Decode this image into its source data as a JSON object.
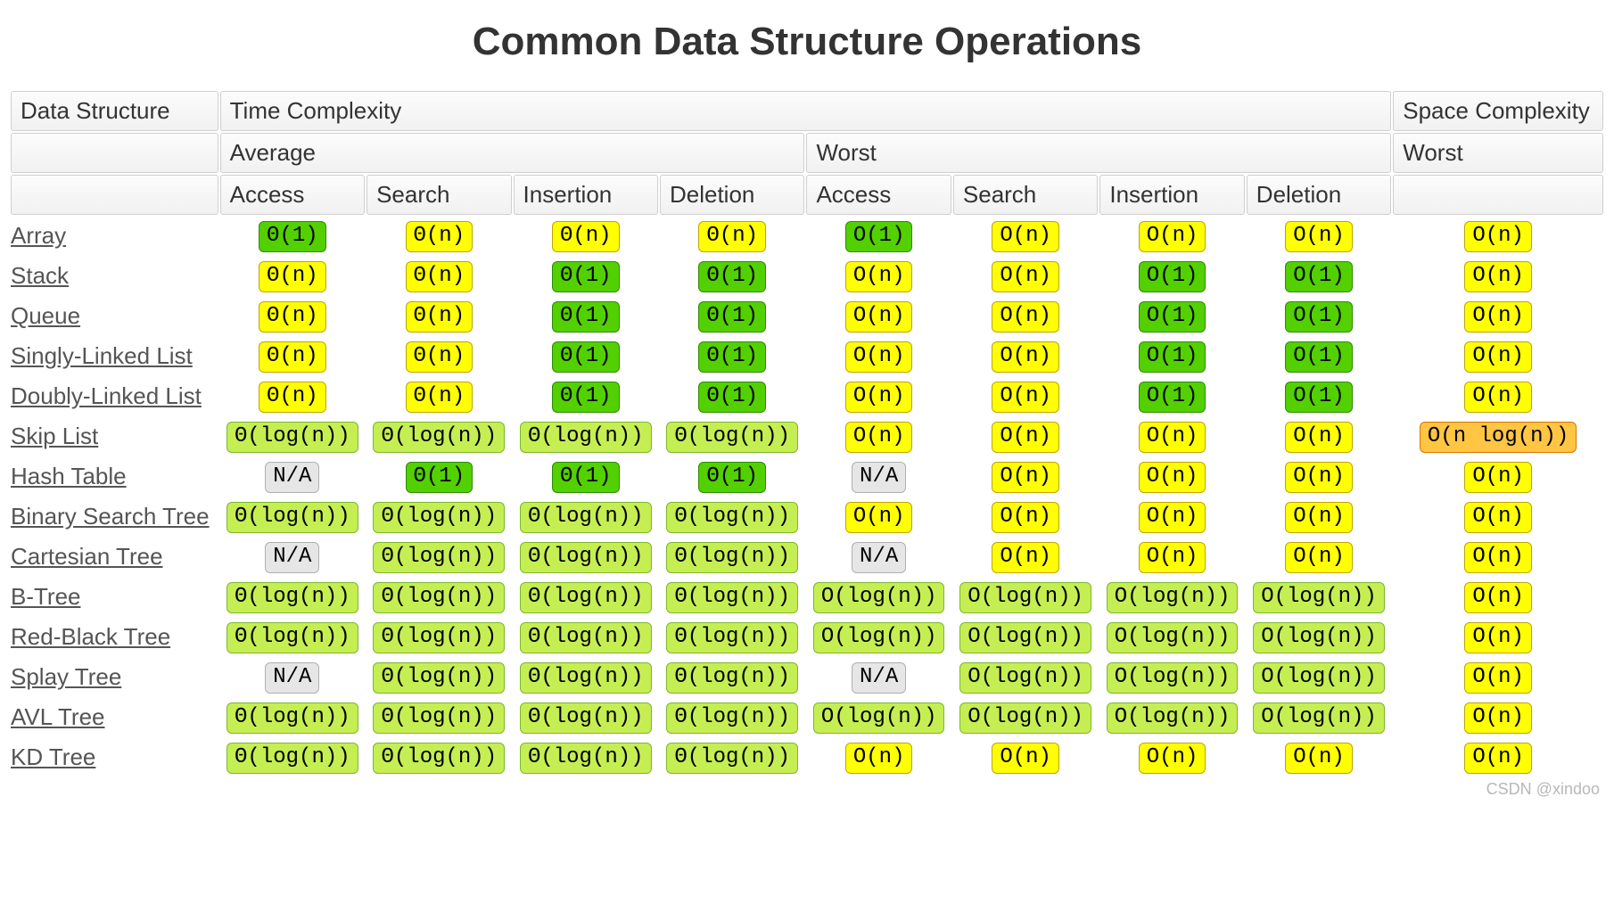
{
  "title": "Common Data Structure Operations",
  "watermark": "CSDN @xindoo",
  "colors": {
    "green": "#53d000",
    "lime": "#c5ee53",
    "yellow": "#ffff00",
    "orange": "#ffc543",
    "red": "#ff8989",
    "na": "#e6e6e6",
    "header_bg_top": "#fcfcfc",
    "header_bg_bot": "#f1f1f1",
    "header_border": "#cfcfcf",
    "text": "#333333",
    "link": "#555555",
    "background": "#ffffff"
  },
  "typography": {
    "title_fontsize": 44,
    "header_fontsize": 26,
    "cell_fontsize": 26,
    "chip_fontsize": 24,
    "chip_fontfamily": "Courier New",
    "body_fontfamily": "Helvetica Neue"
  },
  "header_rows": [
    [
      {
        "label": "Data Structure",
        "colspan": 1
      },
      {
        "label": "Time Complexity",
        "colspan": 8
      },
      {
        "label": "Space Complexity",
        "colspan": 1
      }
    ],
    [
      {
        "label": "",
        "colspan": 1
      },
      {
        "label": "Average",
        "colspan": 4
      },
      {
        "label": "Worst",
        "colspan": 4
      },
      {
        "label": "Worst",
        "colspan": 1
      }
    ],
    [
      {
        "label": "",
        "colspan": 1
      },
      {
        "label": "Access",
        "colspan": 1
      },
      {
        "label": "Search",
        "colspan": 1
      },
      {
        "label": "Insertion",
        "colspan": 1
      },
      {
        "label": "Deletion",
        "colspan": 1
      },
      {
        "label": "Access",
        "colspan": 1
      },
      {
        "label": "Search",
        "colspan": 1
      },
      {
        "label": "Insertion",
        "colspan": 1
      },
      {
        "label": "Deletion",
        "colspan": 1
      },
      {
        "label": "",
        "colspan": 1
      }
    ]
  ],
  "rows": [
    {
      "name": "Array",
      "cells": [
        {
          "text": "Θ(1)",
          "class": "green"
        },
        {
          "text": "Θ(n)",
          "class": "yellow"
        },
        {
          "text": "Θ(n)",
          "class": "yellow"
        },
        {
          "text": "Θ(n)",
          "class": "yellow"
        },
        {
          "text": "O(1)",
          "class": "green"
        },
        {
          "text": "O(n)",
          "class": "yellow"
        },
        {
          "text": "O(n)",
          "class": "yellow"
        },
        {
          "text": "O(n)",
          "class": "yellow"
        },
        {
          "text": "O(n)",
          "class": "yellow"
        }
      ]
    },
    {
      "name": "Stack",
      "cells": [
        {
          "text": "Θ(n)",
          "class": "yellow"
        },
        {
          "text": "Θ(n)",
          "class": "yellow"
        },
        {
          "text": "Θ(1)",
          "class": "green"
        },
        {
          "text": "Θ(1)",
          "class": "green"
        },
        {
          "text": "O(n)",
          "class": "yellow"
        },
        {
          "text": "O(n)",
          "class": "yellow"
        },
        {
          "text": "O(1)",
          "class": "green"
        },
        {
          "text": "O(1)",
          "class": "green"
        },
        {
          "text": "O(n)",
          "class": "yellow"
        }
      ]
    },
    {
      "name": "Queue",
      "cells": [
        {
          "text": "Θ(n)",
          "class": "yellow"
        },
        {
          "text": "Θ(n)",
          "class": "yellow"
        },
        {
          "text": "Θ(1)",
          "class": "green"
        },
        {
          "text": "Θ(1)",
          "class": "green"
        },
        {
          "text": "O(n)",
          "class": "yellow"
        },
        {
          "text": "O(n)",
          "class": "yellow"
        },
        {
          "text": "O(1)",
          "class": "green"
        },
        {
          "text": "O(1)",
          "class": "green"
        },
        {
          "text": "O(n)",
          "class": "yellow"
        }
      ]
    },
    {
      "name": "Singly-Linked List",
      "cells": [
        {
          "text": "Θ(n)",
          "class": "yellow"
        },
        {
          "text": "Θ(n)",
          "class": "yellow"
        },
        {
          "text": "Θ(1)",
          "class": "green"
        },
        {
          "text": "Θ(1)",
          "class": "green"
        },
        {
          "text": "O(n)",
          "class": "yellow"
        },
        {
          "text": "O(n)",
          "class": "yellow"
        },
        {
          "text": "O(1)",
          "class": "green"
        },
        {
          "text": "O(1)",
          "class": "green"
        },
        {
          "text": "O(n)",
          "class": "yellow"
        }
      ]
    },
    {
      "name": "Doubly-Linked List",
      "cells": [
        {
          "text": "Θ(n)",
          "class": "yellow"
        },
        {
          "text": "Θ(n)",
          "class": "yellow"
        },
        {
          "text": "Θ(1)",
          "class": "green"
        },
        {
          "text": "Θ(1)",
          "class": "green"
        },
        {
          "text": "O(n)",
          "class": "yellow"
        },
        {
          "text": "O(n)",
          "class": "yellow"
        },
        {
          "text": "O(1)",
          "class": "green"
        },
        {
          "text": "O(1)",
          "class": "green"
        },
        {
          "text": "O(n)",
          "class": "yellow"
        }
      ]
    },
    {
      "name": "Skip List",
      "cells": [
        {
          "text": "Θ(log(n))",
          "class": "lime"
        },
        {
          "text": "Θ(log(n))",
          "class": "lime"
        },
        {
          "text": "Θ(log(n))",
          "class": "lime"
        },
        {
          "text": "Θ(log(n))",
          "class": "lime"
        },
        {
          "text": "O(n)",
          "class": "yellow"
        },
        {
          "text": "O(n)",
          "class": "yellow"
        },
        {
          "text": "O(n)",
          "class": "yellow"
        },
        {
          "text": "O(n)",
          "class": "yellow"
        },
        {
          "text": "O(n log(n))",
          "class": "orange"
        }
      ]
    },
    {
      "name": "Hash Table",
      "cells": [
        {
          "text": "N/A",
          "class": "na"
        },
        {
          "text": "Θ(1)",
          "class": "green"
        },
        {
          "text": "Θ(1)",
          "class": "green"
        },
        {
          "text": "Θ(1)",
          "class": "green"
        },
        {
          "text": "N/A",
          "class": "na"
        },
        {
          "text": "O(n)",
          "class": "yellow"
        },
        {
          "text": "O(n)",
          "class": "yellow"
        },
        {
          "text": "O(n)",
          "class": "yellow"
        },
        {
          "text": "O(n)",
          "class": "yellow"
        }
      ]
    },
    {
      "name": "Binary Search Tree",
      "cells": [
        {
          "text": "Θ(log(n))",
          "class": "lime"
        },
        {
          "text": "Θ(log(n))",
          "class": "lime"
        },
        {
          "text": "Θ(log(n))",
          "class": "lime"
        },
        {
          "text": "Θ(log(n))",
          "class": "lime"
        },
        {
          "text": "O(n)",
          "class": "yellow"
        },
        {
          "text": "O(n)",
          "class": "yellow"
        },
        {
          "text": "O(n)",
          "class": "yellow"
        },
        {
          "text": "O(n)",
          "class": "yellow"
        },
        {
          "text": "O(n)",
          "class": "yellow"
        }
      ]
    },
    {
      "name": "Cartesian Tree",
      "cells": [
        {
          "text": "N/A",
          "class": "na"
        },
        {
          "text": "Θ(log(n))",
          "class": "lime"
        },
        {
          "text": "Θ(log(n))",
          "class": "lime"
        },
        {
          "text": "Θ(log(n))",
          "class": "lime"
        },
        {
          "text": "N/A",
          "class": "na"
        },
        {
          "text": "O(n)",
          "class": "yellow"
        },
        {
          "text": "O(n)",
          "class": "yellow"
        },
        {
          "text": "O(n)",
          "class": "yellow"
        },
        {
          "text": "O(n)",
          "class": "yellow"
        }
      ]
    },
    {
      "name": "B-Tree",
      "cells": [
        {
          "text": "Θ(log(n))",
          "class": "lime"
        },
        {
          "text": "Θ(log(n))",
          "class": "lime"
        },
        {
          "text": "Θ(log(n))",
          "class": "lime"
        },
        {
          "text": "Θ(log(n))",
          "class": "lime"
        },
        {
          "text": "O(log(n))",
          "class": "lime"
        },
        {
          "text": "O(log(n))",
          "class": "lime"
        },
        {
          "text": "O(log(n))",
          "class": "lime"
        },
        {
          "text": "O(log(n))",
          "class": "lime"
        },
        {
          "text": "O(n)",
          "class": "yellow"
        }
      ]
    },
    {
      "name": "Red-Black Tree",
      "cells": [
        {
          "text": "Θ(log(n))",
          "class": "lime"
        },
        {
          "text": "Θ(log(n))",
          "class": "lime"
        },
        {
          "text": "Θ(log(n))",
          "class": "lime"
        },
        {
          "text": "Θ(log(n))",
          "class": "lime"
        },
        {
          "text": "O(log(n))",
          "class": "lime"
        },
        {
          "text": "O(log(n))",
          "class": "lime"
        },
        {
          "text": "O(log(n))",
          "class": "lime"
        },
        {
          "text": "O(log(n))",
          "class": "lime"
        },
        {
          "text": "O(n)",
          "class": "yellow"
        }
      ]
    },
    {
      "name": "Splay Tree",
      "cells": [
        {
          "text": "N/A",
          "class": "na"
        },
        {
          "text": "Θ(log(n))",
          "class": "lime"
        },
        {
          "text": "Θ(log(n))",
          "class": "lime"
        },
        {
          "text": "Θ(log(n))",
          "class": "lime"
        },
        {
          "text": "N/A",
          "class": "na"
        },
        {
          "text": "O(log(n))",
          "class": "lime"
        },
        {
          "text": "O(log(n))",
          "class": "lime"
        },
        {
          "text": "O(log(n))",
          "class": "lime"
        },
        {
          "text": "O(n)",
          "class": "yellow"
        }
      ]
    },
    {
      "name": "AVL Tree",
      "cells": [
        {
          "text": "Θ(log(n))",
          "class": "lime"
        },
        {
          "text": "Θ(log(n))",
          "class": "lime"
        },
        {
          "text": "Θ(log(n))",
          "class": "lime"
        },
        {
          "text": "Θ(log(n))",
          "class": "lime"
        },
        {
          "text": "O(log(n))",
          "class": "lime"
        },
        {
          "text": "O(log(n))",
          "class": "lime"
        },
        {
          "text": "O(log(n))",
          "class": "lime"
        },
        {
          "text": "O(log(n))",
          "class": "lime"
        },
        {
          "text": "O(n)",
          "class": "yellow"
        }
      ]
    },
    {
      "name": "KD Tree",
      "cells": [
        {
          "text": "Θ(log(n))",
          "class": "lime"
        },
        {
          "text": "Θ(log(n))",
          "class": "lime"
        },
        {
          "text": "Θ(log(n))",
          "class": "lime"
        },
        {
          "text": "Θ(log(n))",
          "class": "lime"
        },
        {
          "text": "O(n)",
          "class": "yellow"
        },
        {
          "text": "O(n)",
          "class": "yellow"
        },
        {
          "text": "O(n)",
          "class": "yellow"
        },
        {
          "text": "O(n)",
          "class": "yellow"
        },
        {
          "text": "O(n)",
          "class": "yellow"
        }
      ]
    }
  ]
}
